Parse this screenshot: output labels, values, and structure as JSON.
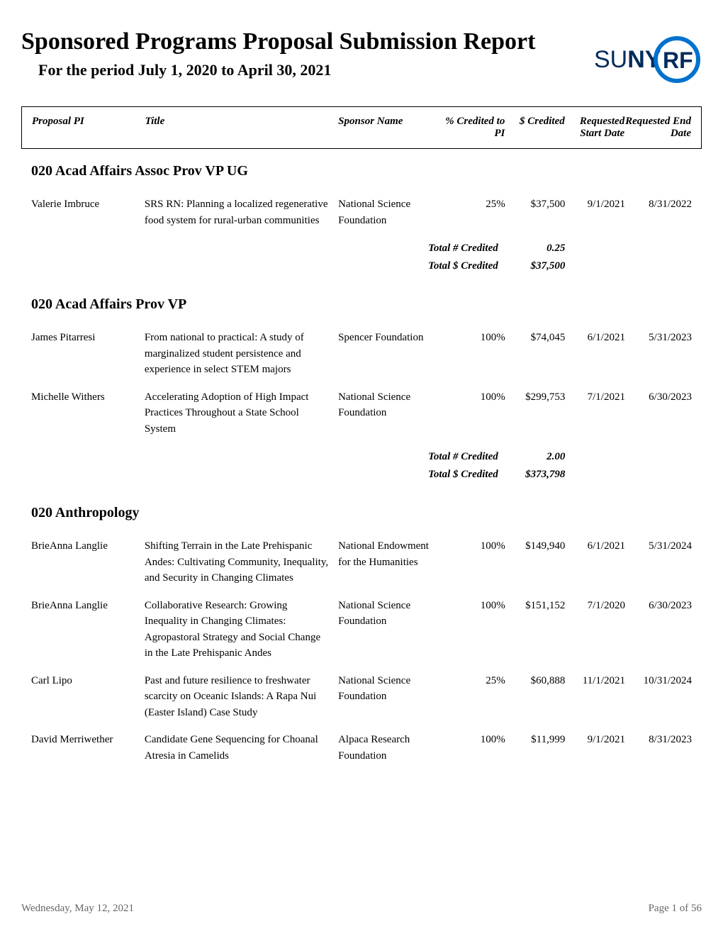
{
  "header": {
    "title": "Sponsored Programs Proposal Submission Report",
    "subtitle": "For the period  July 1, 2020  to April 30, 2021",
    "logo_text_left": "SUNY",
    "logo_text_right": "RF",
    "logo_color_text": "#002b5c",
    "logo_color_circle": "#0072ce"
  },
  "columns": {
    "pi": "Proposal PI",
    "title": "Title",
    "sponsor": "Sponsor Name",
    "pct": "% Credited to PI",
    "dollar": "$ Credited",
    "start": "Requested Start Date",
    "end": "Requested End Date"
  },
  "totals_labels": {
    "num": "Total # Credited",
    "dollar": "Total $ Credited"
  },
  "sections": [
    {
      "name": "020 Acad Affairs Assoc Prov VP UG",
      "rows": [
        {
          "pi": "Valerie Imbruce",
          "title": "SRS RN: Planning a localized regenerative food system for rural-urban communities",
          "sponsor": "National Science Foundation",
          "pct": "25%",
          "dollar": "$37,500",
          "start": "9/1/2021",
          "end": "8/31/2022"
        }
      ],
      "total_num": "0.25",
      "total_dollar": "$37,500"
    },
    {
      "name": "020 Acad Affairs Prov VP",
      "rows": [
        {
          "pi": "James Pitarresi",
          "title": "From national to practical: A study of marginalized student persistence and experience in select STEM majors",
          "sponsor": "Spencer Foundation",
          "pct": "100%",
          "dollar": "$74,045",
          "start": "6/1/2021",
          "end": "5/31/2023"
        },
        {
          "pi": "Michelle Withers",
          "title": "Accelerating Adoption of High Impact Practices Throughout a State School System",
          "sponsor": "National Science Foundation",
          "pct": "100%",
          "dollar": "$299,753",
          "start": "7/1/2021",
          "end": "6/30/2023"
        }
      ],
      "total_num": "2.00",
      "total_dollar": "$373,798"
    },
    {
      "name": "020 Anthropology",
      "rows": [
        {
          "pi": "BrieAnna Langlie",
          "title": "Shifting Terrain in the Late Prehispanic Andes: Cultivating Community, Inequality, and Security in Changing Climates",
          "sponsor": "National Endowment for the Humanities",
          "pct": "100%",
          "dollar": "$149,940",
          "start": "6/1/2021",
          "end": "5/31/2024"
        },
        {
          "pi": "BrieAnna Langlie",
          "title": "Collaborative Research: Growing Inequality in Changing Climates: Agropastoral Strategy and Social Change in the Late Prehispanic Andes",
          "sponsor": "National Science Foundation",
          "pct": "100%",
          "dollar": "$151,152",
          "start": "7/1/2020",
          "end": "6/30/2023"
        },
        {
          "pi": "Carl Lipo",
          "title": "Past and future resilience to freshwater scarcity on Oceanic Islands: A Rapa Nui (Easter Island) Case Study",
          "sponsor": "National Science Foundation",
          "pct": "25%",
          "dollar": "$60,888",
          "start": "11/1/2021",
          "end": "10/31/2024"
        },
        {
          "pi": "David Merriwether",
          "title": "Candidate Gene Sequencing for Choanal Atresia in Camelids",
          "sponsor": "Alpaca Research Foundation",
          "pct": "100%",
          "dollar": "$11,999",
          "start": "9/1/2021",
          "end": "8/31/2023"
        }
      ]
    }
  ],
  "footer": {
    "date": "Wednesday, May 12, 2021",
    "page": "Page 1 of 56"
  }
}
